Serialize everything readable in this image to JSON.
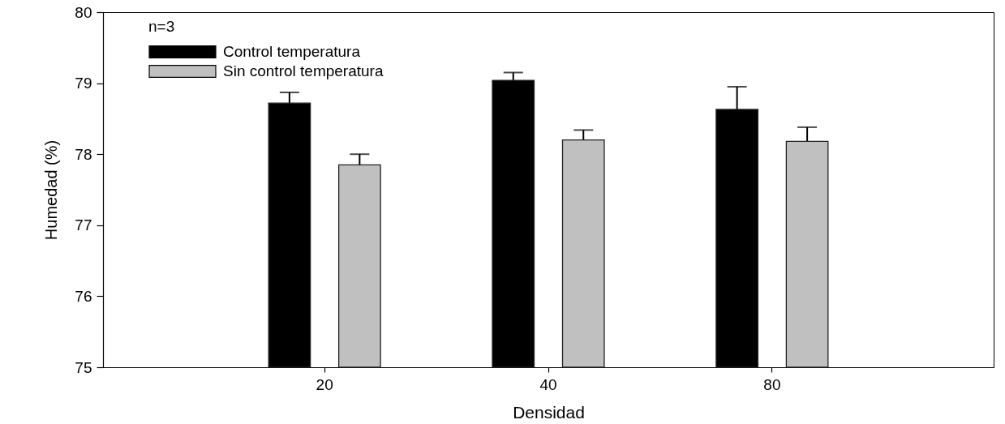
{
  "chart_data": {
    "type": "bar",
    "xlabel": "Densidad",
    "ylabel": "Humedad (%)",
    "annotations": [
      "n=3"
    ],
    "categories": [
      "20",
      "40",
      "80"
    ],
    "series": [
      {
        "name": "Control temperatura",
        "color": "#000000",
        "values": [
          78.72,
          79.04,
          78.63
        ],
        "errors": [
          0.15,
          0.11,
          0.32
        ]
      },
      {
        "name": "Sin control temperatura",
        "color": "#c0c0c0",
        "values": [
          77.85,
          78.2,
          78.18
        ],
        "errors": [
          0.15,
          0.14,
          0.2
        ]
      }
    ],
    "ylim": [
      75,
      80
    ],
    "yticks": [
      75,
      76,
      77,
      78,
      79,
      80
    ],
    "grid": false,
    "legend": "top left"
  }
}
